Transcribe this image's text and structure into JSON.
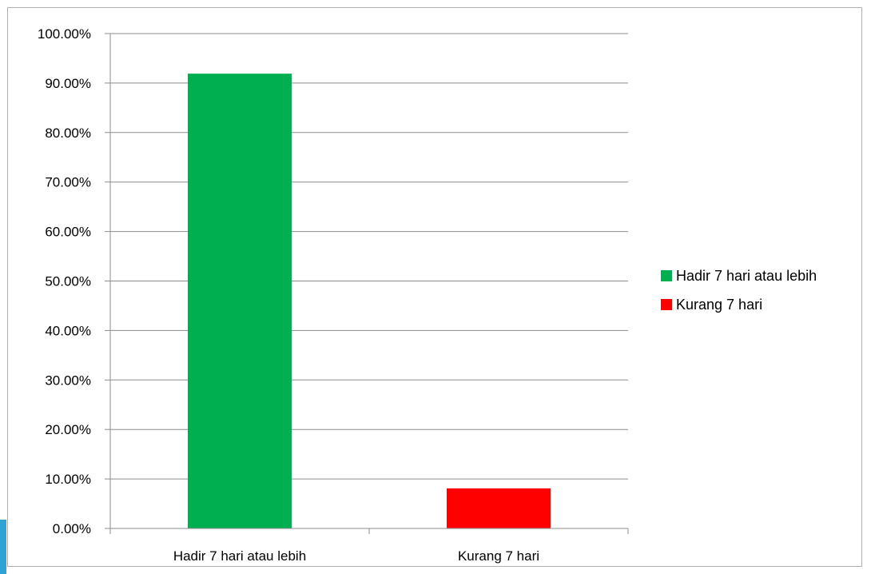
{
  "chart_data": {
    "type": "bar",
    "categories": [
      "Hadir 7 hari atau lebih",
      "Kurang 7 hari"
    ],
    "values": [
      91.9,
      8.1
    ],
    "colors": [
      "#00b050",
      "#ff0000"
    ],
    "ylim": [
      0,
      100
    ],
    "yticks": [
      "0.00%",
      "10.00%",
      "20.00%",
      "30.00%",
      "40.00%",
      "50.00%",
      "60.00%",
      "70.00%",
      "80.00%",
      "90.00%",
      "100.00%"
    ],
    "grid": true,
    "legend": {
      "position": "right",
      "entries": [
        {
          "label": "Hadir 7 hari atau lebih",
          "color": "#00b050"
        },
        {
          "label": "Kurang 7 hari",
          "color": "#ff0000"
        }
      ]
    },
    "title": "",
    "xlabel": "",
    "ylabel": ""
  }
}
